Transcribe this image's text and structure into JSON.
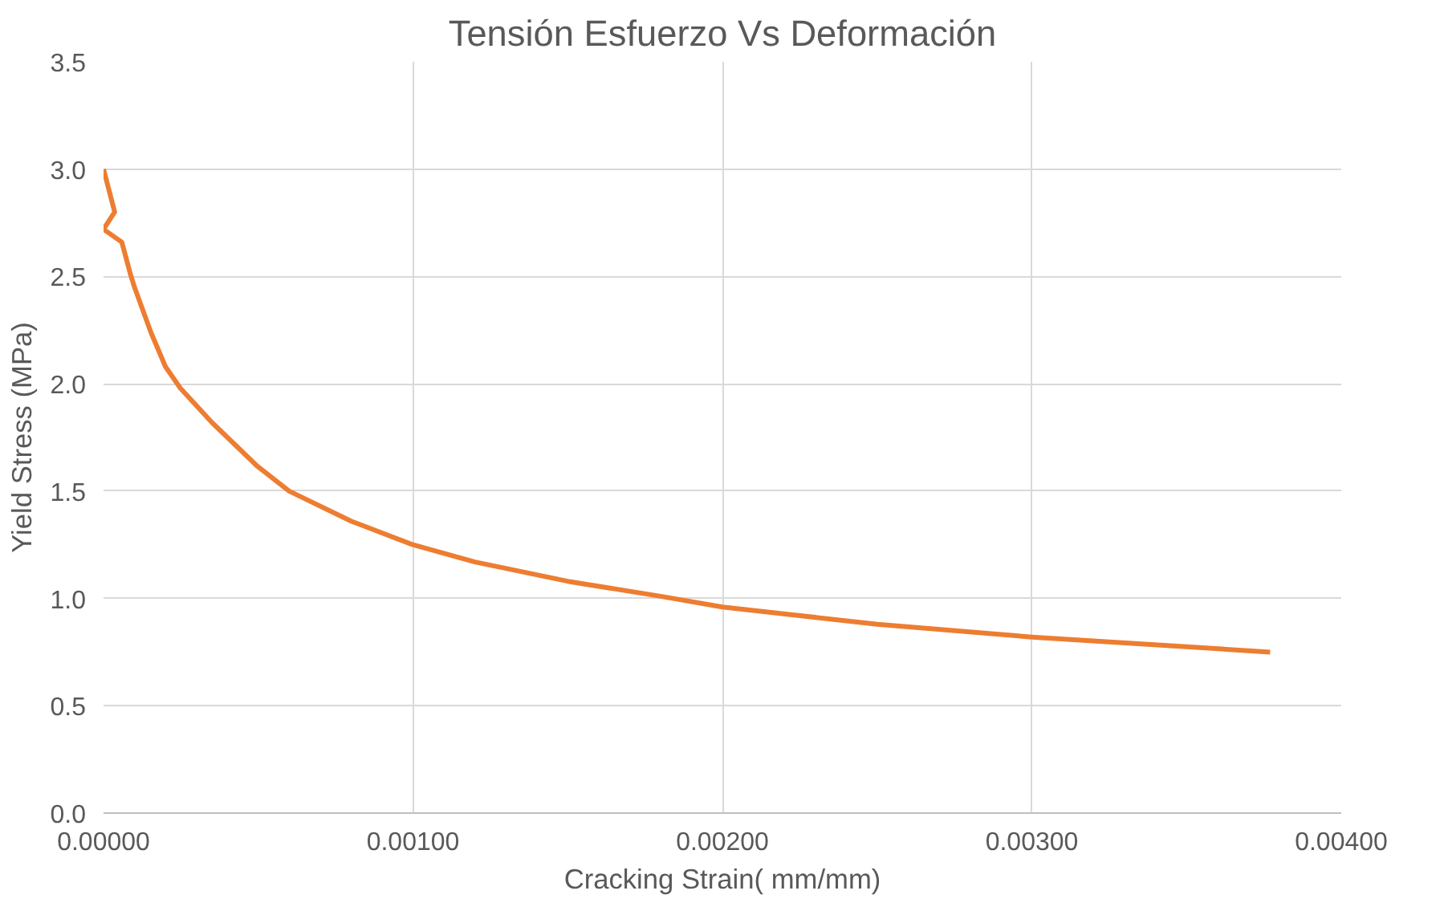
{
  "chart_data": {
    "type": "line",
    "title": "Tensión Esfuerzo Vs Deformación",
    "xlabel": "Cracking Strain( mm/mm)",
    "ylabel": "Yield Stress (MPa)",
    "x": [
      0,
      3.6e-05,
      0,
      5.9e-05,
      8.7e-05,
      0.0001,
      0.000153,
      0.0002,
      0.000248,
      0.00035,
      0.000494,
      0.0006,
      0.0008,
      0.001,
      0.0012,
      0.0015,
      0.0018,
      0.002,
      0.0025,
      0.003,
      0.0035,
      0.00377
    ],
    "series": [
      {
        "color": "#ed7d31",
        "values": [
          3.0,
          2.8,
          2.72,
          2.66,
          2.51,
          2.45,
          2.24,
          2.08,
          1.98,
          1.82,
          1.62,
          1.5,
          1.36,
          1.25,
          1.17,
          1.08,
          1.01,
          0.96,
          0.88,
          0.82,
          0.775,
          0.75
        ]
      }
    ],
    "xlim": [
      0,
      0.004
    ],
    "xticks": [
      {
        "value": 0,
        "label": "0.00000"
      },
      {
        "value": 0.001,
        "label": "0.00100"
      },
      {
        "value": 0.002,
        "label": "0.00200"
      },
      {
        "value": 0.003,
        "label": "0.00300"
      },
      {
        "value": 0.004,
        "label": "0.00400"
      }
    ],
    "ylim": [
      0,
      3.5
    ],
    "yticks": [
      {
        "value": 0,
        "label": "0.0"
      },
      {
        "value": 0.5,
        "label": "0.5"
      },
      {
        "value": 1,
        "label": "1.0"
      },
      {
        "value": 1.5,
        "label": "1.5"
      },
      {
        "value": 2,
        "label": "2.0"
      },
      {
        "value": 2.5,
        "label": "2.5"
      },
      {
        "value": 3,
        "label": "3.0"
      },
      {
        "value": 3.5,
        "label": "3.5"
      }
    ],
    "grid": true,
    "marker": "none",
    "line_style": "solid"
  }
}
